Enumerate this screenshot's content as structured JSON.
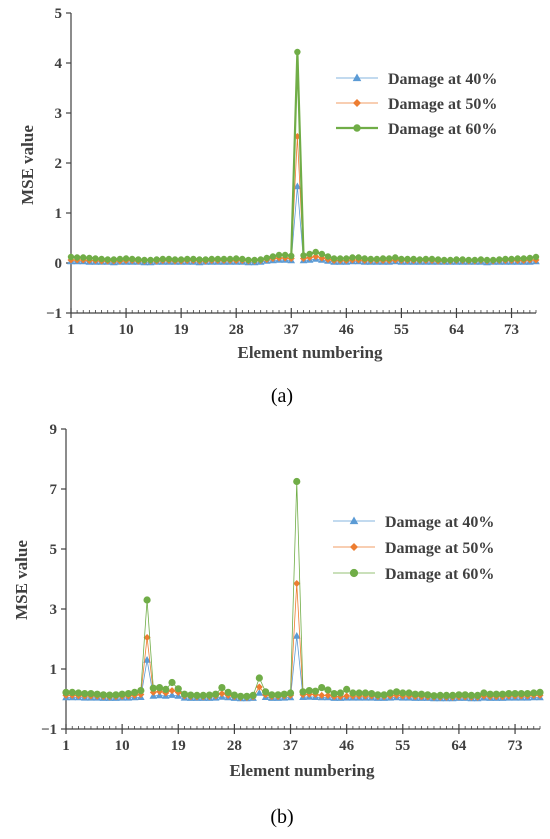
{
  "chart_data": [
    {
      "type": "line",
      "caption": "(a)",
      "xlabel": "Element numbering",
      "ylabel": "MSE  value",
      "ylim": [
        -1,
        5
      ],
      "yticks": [
        -1,
        0,
        1,
        2,
        3,
        4,
        5
      ],
      "xlim": [
        1,
        77
      ],
      "xticks": [
        1,
        10,
        19,
        28,
        37,
        46,
        55,
        64,
        73
      ],
      "legend_position": "upper-right",
      "series": [
        {
          "name": "Damage at 40%",
          "color": "#5b9bd5",
          "marker": "triangle",
          "line_width": 0.8,
          "marker_size": 4,
          "x": [
            1,
            2,
            3,
            4,
            5,
            6,
            7,
            8,
            9,
            10,
            11,
            12,
            13,
            14,
            15,
            16,
            17,
            18,
            19,
            20,
            21,
            22,
            23,
            24,
            25,
            26,
            27,
            28,
            29,
            30,
            31,
            32,
            33,
            34,
            35,
            36,
            37,
            38,
            39,
            40,
            41,
            42,
            43,
            44,
            45,
            46,
            47,
            48,
            49,
            50,
            51,
            52,
            53,
            54,
            55,
            56,
            57,
            58,
            59,
            60,
            61,
            62,
            63,
            64,
            65,
            66,
            67,
            68,
            69,
            70,
            71,
            72,
            73,
            74,
            75,
            76,
            77
          ],
          "values": [
            0.03,
            0.03,
            0.03,
            0.02,
            0.02,
            0.02,
            0.02,
            0.01,
            0.02,
            0.02,
            0.02,
            0.02,
            0.01,
            0.01,
            0.02,
            0.02,
            0.02,
            0.02,
            0.02,
            0.02,
            0.02,
            0.01,
            0.02,
            0.02,
            0.02,
            0.02,
            0.02,
            0.02,
            0.02,
            0.01,
            0.01,
            0.02,
            0.04,
            0.05,
            0.06,
            0.06,
            0.05,
            1.53,
            0.05,
            0.06,
            0.08,
            0.06,
            0.04,
            0.02,
            0.02,
            0.02,
            0.03,
            0.03,
            0.02,
            0.02,
            0.02,
            0.02,
            0.02,
            0.03,
            0.02,
            0.02,
            0.02,
            0.02,
            0.02,
            0.02,
            0.02,
            0.02,
            0.02,
            0.02,
            0.02,
            0.02,
            0.02,
            0.02,
            0.01,
            0.02,
            0.02,
            0.02,
            0.02,
            0.02,
            0.02,
            0.02,
            0.03
          ]
        },
        {
          "name": "Damage at 50%",
          "color": "#ed7d31",
          "marker": "diamond",
          "line_width": 0.8,
          "marker_size": 3.5,
          "x": [
            1,
            2,
            3,
            4,
            5,
            6,
            7,
            8,
            9,
            10,
            11,
            12,
            13,
            14,
            15,
            16,
            17,
            18,
            19,
            20,
            21,
            22,
            23,
            24,
            25,
            26,
            27,
            28,
            29,
            30,
            31,
            32,
            33,
            34,
            35,
            36,
            37,
            38,
            39,
            40,
            41,
            42,
            43,
            44,
            45,
            46,
            47,
            48,
            49,
            50,
            51,
            52,
            53,
            54,
            55,
            56,
            57,
            58,
            59,
            60,
            61,
            62,
            63,
            64,
            65,
            66,
            67,
            68,
            69,
            70,
            71,
            72,
            73,
            74,
            75,
            76,
            77
          ],
          "values": [
            0.06,
            0.06,
            0.06,
            0.05,
            0.05,
            0.04,
            0.04,
            0.04,
            0.04,
            0.05,
            0.05,
            0.04,
            0.04,
            0.04,
            0.04,
            0.05,
            0.05,
            0.04,
            0.04,
            0.05,
            0.05,
            0.04,
            0.04,
            0.05,
            0.05,
            0.05,
            0.05,
            0.05,
            0.05,
            0.04,
            0.04,
            0.05,
            0.07,
            0.09,
            0.1,
            0.1,
            0.09,
            2.53,
            0.09,
            0.11,
            0.13,
            0.1,
            0.07,
            0.05,
            0.05,
            0.05,
            0.06,
            0.06,
            0.05,
            0.05,
            0.05,
            0.05,
            0.05,
            0.06,
            0.05,
            0.05,
            0.05,
            0.05,
            0.05,
            0.05,
            0.04,
            0.04,
            0.04,
            0.05,
            0.05,
            0.04,
            0.04,
            0.05,
            0.04,
            0.04,
            0.05,
            0.05,
            0.05,
            0.05,
            0.05,
            0.06,
            0.06
          ]
        },
        {
          "name": "Damage at 60%",
          "color": "#70ad47",
          "marker": "circle",
          "line_width": 2.2,
          "marker_size": 3.2,
          "x": [
            1,
            2,
            3,
            4,
            5,
            6,
            7,
            8,
            9,
            10,
            11,
            12,
            13,
            14,
            15,
            16,
            17,
            18,
            19,
            20,
            21,
            22,
            23,
            24,
            25,
            26,
            27,
            28,
            29,
            30,
            31,
            32,
            33,
            34,
            35,
            36,
            37,
            38,
            39,
            40,
            41,
            42,
            43,
            44,
            45,
            46,
            47,
            48,
            49,
            50,
            51,
            52,
            53,
            54,
            55,
            56,
            57,
            58,
            59,
            60,
            61,
            62,
            63,
            64,
            65,
            66,
            67,
            68,
            69,
            70,
            71,
            72,
            73,
            74,
            75,
            76,
            77
          ],
          "values": [
            0.12,
            0.11,
            0.11,
            0.1,
            0.09,
            0.08,
            0.07,
            0.07,
            0.08,
            0.09,
            0.08,
            0.07,
            0.06,
            0.06,
            0.07,
            0.08,
            0.08,
            0.07,
            0.07,
            0.08,
            0.08,
            0.07,
            0.07,
            0.08,
            0.08,
            0.08,
            0.08,
            0.09,
            0.08,
            0.06,
            0.06,
            0.07,
            0.1,
            0.13,
            0.16,
            0.16,
            0.14,
            4.22,
            0.15,
            0.18,
            0.22,
            0.18,
            0.13,
            0.09,
            0.09,
            0.09,
            0.11,
            0.11,
            0.09,
            0.08,
            0.08,
            0.09,
            0.09,
            0.11,
            0.08,
            0.08,
            0.08,
            0.07,
            0.08,
            0.08,
            0.07,
            0.06,
            0.06,
            0.07,
            0.07,
            0.06,
            0.06,
            0.07,
            0.06,
            0.06,
            0.07,
            0.08,
            0.08,
            0.09,
            0.09,
            0.1,
            0.12
          ]
        }
      ]
    },
    {
      "type": "line",
      "caption": "(b)",
      "xlabel": "Element numbering",
      "ylabel": "MSE  value",
      "ylim": [
        -1,
        9
      ],
      "yticks": [
        -1,
        1,
        3,
        5,
        7,
        9
      ],
      "xlim": [
        1,
        77
      ],
      "xticks": [
        1,
        10,
        19,
        28,
        37,
        46,
        55,
        64,
        73
      ],
      "legend_position": "center-right",
      "series": [
        {
          "name": "Damage at 40%",
          "color": "#5b9bd5",
          "marker": "triangle",
          "line_width": 0.8,
          "marker_size": 4,
          "x": [
            1,
            2,
            3,
            4,
            5,
            6,
            7,
            8,
            9,
            10,
            11,
            12,
            13,
            14,
            15,
            16,
            17,
            18,
            19,
            20,
            21,
            22,
            23,
            24,
            25,
            26,
            27,
            28,
            29,
            30,
            31,
            32,
            33,
            34,
            35,
            36,
            37,
            38,
            39,
            40,
            41,
            42,
            43,
            44,
            45,
            46,
            47,
            48,
            49,
            50,
            51,
            52,
            53,
            54,
            55,
            56,
            57,
            58,
            59,
            60,
            61,
            62,
            63,
            64,
            65,
            66,
            67,
            68,
            69,
            70,
            71,
            72,
            73,
            74,
            75,
            76,
            77
          ],
          "values": [
            0.05,
            0.05,
            0.05,
            0.04,
            0.04,
            0.04,
            0.03,
            0.03,
            0.03,
            0.04,
            0.04,
            0.05,
            0.06,
            1.3,
            0.1,
            0.12,
            0.1,
            0.13,
            0.1,
            0.04,
            0.03,
            0.03,
            0.03,
            0.03,
            0.04,
            0.07,
            0.05,
            0.03,
            0.02,
            0.02,
            0.03,
            0.2,
            0.06,
            0.03,
            0.03,
            0.04,
            0.05,
            2.1,
            0.06,
            0.07,
            0.06,
            0.05,
            0.05,
            0.03,
            0.03,
            0.04,
            0.04,
            0.04,
            0.04,
            0.04,
            0.03,
            0.03,
            0.04,
            0.05,
            0.04,
            0.04,
            0.03,
            0.03,
            0.03,
            0.02,
            0.02,
            0.02,
            0.02,
            0.03,
            0.03,
            0.02,
            0.02,
            0.04,
            0.03,
            0.03,
            0.03,
            0.04,
            0.04,
            0.04,
            0.04,
            0.05,
            0.05
          ]
        },
        {
          "name": "Damage at 50%",
          "color": "#ed7d31",
          "marker": "diamond",
          "line_width": 0.8,
          "marker_size": 3.5,
          "x": [
            1,
            2,
            3,
            4,
            5,
            6,
            7,
            8,
            9,
            10,
            11,
            12,
            13,
            14,
            15,
            16,
            17,
            18,
            19,
            20,
            21,
            22,
            23,
            24,
            25,
            26,
            27,
            28,
            29,
            30,
            31,
            32,
            33,
            34,
            35,
            36,
            37,
            38,
            39,
            40,
            41,
            42,
            43,
            44,
            45,
            46,
            47,
            48,
            49,
            50,
            51,
            52,
            53,
            54,
            55,
            56,
            57,
            58,
            59,
            60,
            61,
            62,
            63,
            64,
            65,
            66,
            67,
            68,
            69,
            70,
            71,
            72,
            73,
            74,
            75,
            76,
            77
          ],
          "values": [
            0.12,
            0.12,
            0.11,
            0.1,
            0.1,
            0.09,
            0.08,
            0.07,
            0.08,
            0.09,
            0.1,
            0.12,
            0.15,
            2.05,
            0.22,
            0.25,
            0.2,
            0.28,
            0.22,
            0.1,
            0.08,
            0.07,
            0.07,
            0.08,
            0.1,
            0.18,
            0.12,
            0.08,
            0.05,
            0.05,
            0.07,
            0.4,
            0.14,
            0.08,
            0.08,
            0.1,
            0.12,
            3.85,
            0.14,
            0.16,
            0.15,
            0.12,
            0.12,
            0.08,
            0.08,
            0.1,
            0.1,
            0.1,
            0.1,
            0.1,
            0.08,
            0.08,
            0.1,
            0.12,
            0.1,
            0.1,
            0.08,
            0.08,
            0.07,
            0.06,
            0.06,
            0.06,
            0.06,
            0.07,
            0.07,
            0.06,
            0.06,
            0.1,
            0.08,
            0.08,
            0.08,
            0.1,
            0.1,
            0.1,
            0.1,
            0.12,
            0.12
          ]
        },
        {
          "name": "Damage at 60%",
          "color": "#70ad47",
          "marker": "circle",
          "line_width": 0.8,
          "marker_size": 3.6,
          "x": [
            1,
            2,
            3,
            4,
            5,
            6,
            7,
            8,
            9,
            10,
            11,
            12,
            13,
            14,
            15,
            16,
            17,
            18,
            19,
            20,
            21,
            22,
            23,
            24,
            25,
            26,
            27,
            28,
            29,
            30,
            31,
            32,
            33,
            34,
            35,
            36,
            37,
            38,
            39,
            40,
            41,
            42,
            43,
            44,
            45,
            46,
            47,
            48,
            49,
            50,
            51,
            52,
            53,
            54,
            55,
            56,
            57,
            58,
            59,
            60,
            61,
            62,
            63,
            64,
            65,
            66,
            67,
            68,
            69,
            70,
            71,
            72,
            73,
            74,
            75,
            76,
            77
          ],
          "values": [
            0.22,
            0.22,
            0.2,
            0.18,
            0.18,
            0.16,
            0.14,
            0.13,
            0.14,
            0.16,
            0.18,
            0.22,
            0.28,
            3.3,
            0.36,
            0.38,
            0.32,
            0.55,
            0.34,
            0.16,
            0.13,
            0.12,
            0.12,
            0.13,
            0.16,
            0.38,
            0.22,
            0.13,
            0.09,
            0.09,
            0.12,
            0.7,
            0.24,
            0.14,
            0.14,
            0.16,
            0.2,
            7.25,
            0.24,
            0.28,
            0.26,
            0.38,
            0.3,
            0.18,
            0.2,
            0.32,
            0.2,
            0.2,
            0.2,
            0.18,
            0.14,
            0.14,
            0.2,
            0.24,
            0.2,
            0.2,
            0.16,
            0.16,
            0.14,
            0.11,
            0.12,
            0.12,
            0.12,
            0.14,
            0.14,
            0.12,
            0.12,
            0.2,
            0.16,
            0.16,
            0.16,
            0.18,
            0.18,
            0.18,
            0.18,
            0.2,
            0.22
          ]
        }
      ]
    }
  ]
}
